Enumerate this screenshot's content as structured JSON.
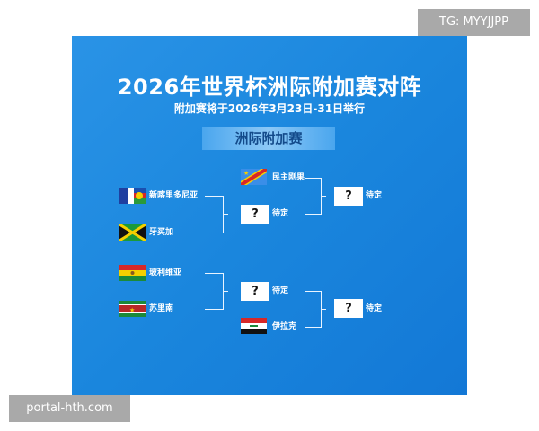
{
  "title": "2026年世界杯洲际附加赛对阵",
  "subtitle": "附加赛将于2026年3月23日-31日举行",
  "banner": "洲际附加赛",
  "bracket": {
    "top": {
      "team1": "新喀里多尼亚",
      "team2": "牙买加",
      "semi_winner": "待定",
      "seeded": "民主刚果",
      "final": "待定"
    },
    "bottom": {
      "team1": "玻利维亚",
      "team2": "苏里南",
      "semi_winner": "待定",
      "seeded": "伊拉克",
      "final": "待定"
    },
    "placeholder_symbol": "?"
  },
  "watermarks": {
    "top_right": "TG: MYYJJPP",
    "bottom_left": "portal-hth.com"
  },
  "colors": {
    "panel": "#1a86dd",
    "banner_text": "#134a8a"
  }
}
